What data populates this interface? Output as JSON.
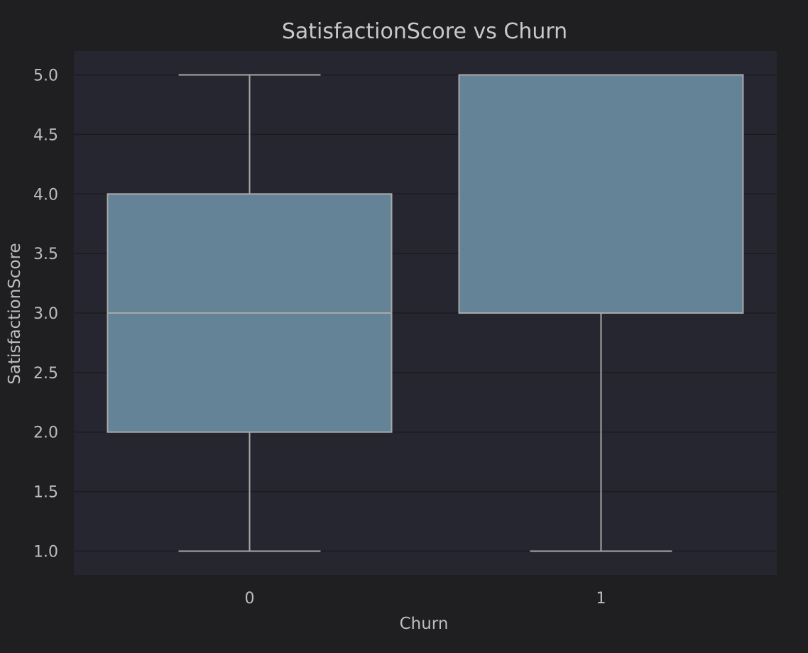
{
  "chart_data": {
    "type": "box",
    "title": "SatisfactionScore vs Churn",
    "xlabel": "Churn",
    "ylabel": "SatisfactionScore",
    "categories": [
      "0",
      "1"
    ],
    "boxes": [
      {
        "category": "0",
        "whisker_low": 1.0,
        "q1": 2.0,
        "median": 3.0,
        "q3": 4.0,
        "whisker_high": 5.0
      },
      {
        "category": "1",
        "whisker_low": 1.0,
        "q1": 3.0,
        "median": 5.0,
        "q3": 5.0,
        "whisker_high": 5.0
      }
    ],
    "ylim": [
      0.8,
      5.2
    ],
    "yticks": [
      1.0,
      1.5,
      2.0,
      2.5,
      3.0,
      3.5,
      4.0,
      4.5,
      5.0
    ],
    "ytick_labels": [
      "1.0",
      "1.5",
      "2.0",
      "2.5",
      "3.0",
      "3.5",
      "4.0",
      "4.5",
      "5.0"
    ],
    "grid": true,
    "colors": {
      "figure_background": "#1f1f21",
      "plot_background": "#262630",
      "box_fill": "#658396",
      "box_edge": "#a8a8a8",
      "grid": "#1b1b1f",
      "text": "#bdbdbd"
    }
  }
}
